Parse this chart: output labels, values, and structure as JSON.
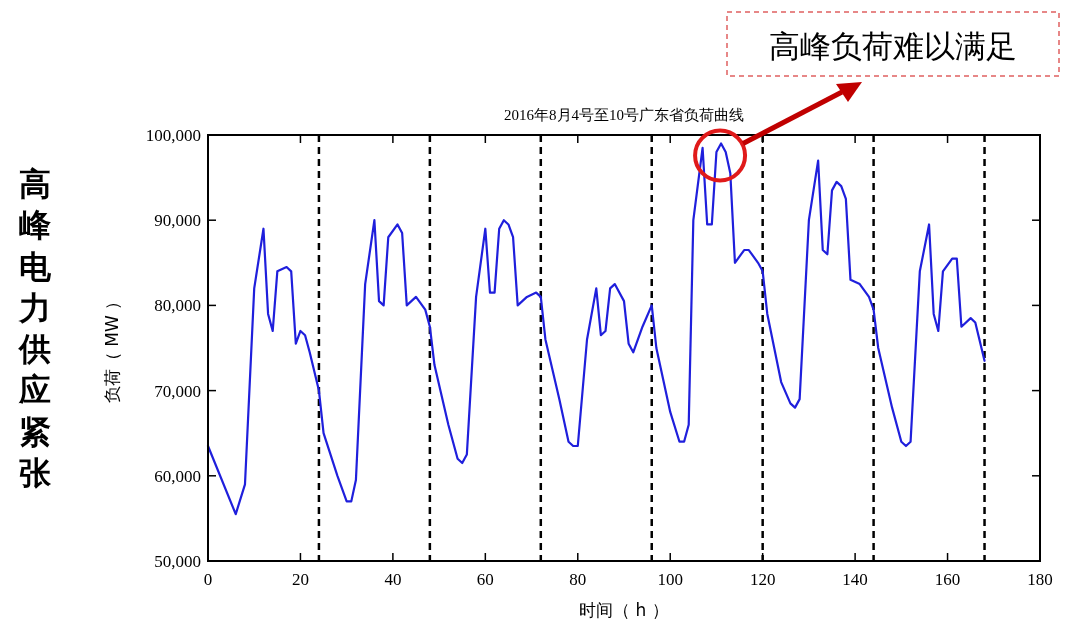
{
  "chart_data": {
    "type": "line",
    "title": "2016年8月4号至10号广东省负荷曲线",
    "xlabel": "时间（ h ）",
    "ylabel": "负荷（ MW ）",
    "series": [
      {
        "color": "#1f1fdc",
        "x": [
          0,
          6,
          8,
          10,
          12,
          13,
          14,
          15,
          17,
          18,
          19,
          20,
          21,
          22,
          24,
          25,
          28,
          30,
          31,
          32,
          34,
          36,
          37,
          38,
          39,
          41,
          42,
          43,
          45,
          47,
          48,
          49,
          52,
          54,
          55,
          56,
          58,
          60,
          61,
          62,
          63,
          64,
          65,
          66,
          67,
          69,
          71,
          72,
          73,
          76,
          78,
          79,
          80,
          82,
          84,
          85,
          86,
          87,
          88,
          90,
          91,
          92,
          94,
          96,
          97,
          100,
          102,
          103,
          104,
          105,
          107,
          108,
          109,
          110,
          111,
          112,
          113,
          114,
          116,
          117,
          119,
          120,
          121,
          124,
          126,
          127,
          128,
          130,
          132,
          133,
          134,
          135,
          136,
          137,
          138,
          139,
          141,
          143,
          144,
          145,
          148,
          150,
          151,
          152,
          154,
          156,
          157,
          158,
          159,
          161,
          162,
          163,
          165,
          166,
          168
        ],
        "values": [
          63500,
          55500,
          59000,
          82000,
          89000,
          79000,
          77000,
          84000,
          84500,
          84000,
          75500,
          77000,
          76500,
          74500,
          70000,
          65000,
          60000,
          57000,
          57000,
          59500,
          82500,
          90000,
          80500,
          80000,
          88000,
          89500,
          88500,
          80000,
          81000,
          79500,
          77500,
          73000,
          66000,
          62000,
          61500,
          62500,
          81000,
          89000,
          81500,
          81500,
          89000,
          90000,
          89500,
          88000,
          80000,
          81000,
          81500,
          81000,
          76000,
          69000,
          64000,
          63500,
          63500,
          76000,
          82000,
          76500,
          77000,
          82000,
          82500,
          80500,
          75500,
          74500,
          77500,
          80000,
          75000,
          67500,
          64000,
          64000,
          66000,
          90000,
          98500,
          89500,
          89500,
          98000,
          99000,
          98000,
          95500,
          85000,
          86500,
          86500,
          85000,
          84000,
          79000,
          71000,
          68500,
          68000,
          69000,
          90000,
          97000,
          86500,
          86000,
          93500,
          94500,
          94000,
          92500,
          83000,
          82500,
          81000,
          79500,
          75000,
          68000,
          64000,
          63500,
          64000,
          84000,
          89500,
          79000,
          77000,
          84000,
          85500,
          85500,
          77500,
          78500,
          78000,
          73500
        ]
      }
    ],
    "xlim": [
      0,
      180
    ],
    "xticks": [
      0,
      20,
      40,
      60,
      80,
      100,
      120,
      140,
      160,
      180
    ],
    "ylim": [
      50000,
      100000
    ],
    "yticks": [
      {
        "value": 50000,
        "label": "50,000"
      },
      {
        "value": 60000,
        "label": "60,000"
      },
      {
        "value": 70000,
        "label": "70,000"
      },
      {
        "value": 80000,
        "label": "80,000"
      },
      {
        "value": 90000,
        "label": "90,000"
      },
      {
        "value": 100000,
        "label": "100,000"
      }
    ],
    "ref_lines": [
      {
        "axis": "x",
        "value": 24,
        "color": "#000000",
        "line_style": "dashed"
      },
      {
        "axis": "x",
        "value": 48,
        "color": "#000000",
        "line_style": "dashed"
      },
      {
        "axis": "x",
        "value": 72,
        "color": "#000000",
        "line_style": "dashed"
      },
      {
        "axis": "x",
        "value": 96,
        "color": "#000000",
        "line_style": "dashed"
      },
      {
        "axis": "x",
        "value": 120,
        "color": "#000000",
        "line_style": "dashed"
      },
      {
        "axis": "x",
        "value": 144,
        "color": "#000000",
        "line_style": "dashed"
      },
      {
        "axis": "x",
        "value": 168,
        "color": "#000000",
        "line_style": "dashed"
      }
    ],
    "annotations": [
      {
        "text": "高峰负荷难以满足",
        "x": 111,
        "y": 99000
      },
      "高峰电力供应紧张"
    ],
    "grid": false,
    "marker": "none",
    "line_style": "solid"
  }
}
